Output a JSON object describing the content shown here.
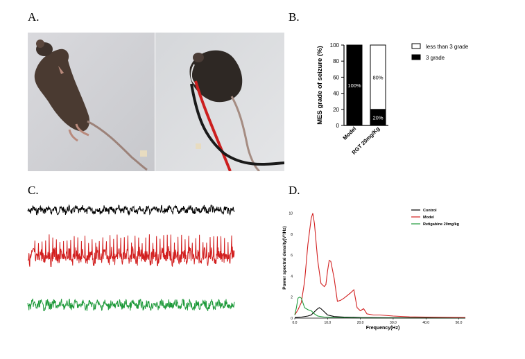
{
  "panels": {
    "a": "A.",
    "b": "B.",
    "c": "C.",
    "d": "D."
  },
  "colors": {
    "control": "#000000",
    "model": "#d21f1f",
    "retigabine": "#1e9a3a"
  },
  "chart_data": [
    {
      "panel": "B",
      "type": "bar",
      "stacked": true,
      "categories": [
        "Model",
        "RGT 20mg/Kg"
      ],
      "series": [
        {
          "name": "3 grade",
          "values": [
            100,
            20
          ],
          "labels": [
            "100%",
            "20%"
          ]
        },
        {
          "name": "less than 3 grade",
          "values": [
            0,
            80
          ],
          "labels": [
            "",
            "80%"
          ]
        }
      ],
      "ylabel": "MES grade of seizure (%)",
      "ylim": [
        0,
        100
      ],
      "yticks": [
        "0",
        "20",
        "40",
        "60",
        "80",
        "100"
      ],
      "legend": "right"
    },
    {
      "panel": "C",
      "type": "line",
      "series": [
        {
          "name": "Control",
          "color": "#000000",
          "amplitude": 0.12,
          "spikes": false
        },
        {
          "name": "Model",
          "color": "#d21f1f",
          "amplitude": 0.25,
          "spikes": true
        },
        {
          "name": "Retigabine 20mg/kg",
          "color": "#1e9a3a",
          "amplitude": 0.15,
          "spikes": false
        }
      ]
    },
    {
      "panel": "D",
      "type": "line",
      "xlabel": "Frequency(Hz)",
      "ylabel": "Power spectral density(V²/Hz)",
      "xlim": [
        0,
        52
      ],
      "ylim": [
        0,
        10.5
      ],
      "xticks": [
        "0.0",
        "10.0",
        "20.0",
        "30.0",
        "40.0",
        "50.0"
      ],
      "yticks": [
        "0",
        "2",
        "4",
        "6",
        "8",
        "10"
      ],
      "legend": "top-right",
      "series": [
        {
          "name": "Control",
          "color": "#000000",
          "points": [
            [
              0,
              0.05
            ],
            [
              2,
              0.1
            ],
            [
              4,
              0.2
            ],
            [
              5,
              0.3
            ],
            [
              6,
              0.6
            ],
            [
              7,
              0.9
            ],
            [
              7.5,
              1.0
            ],
            [
              8,
              0.9
            ],
            [
              9,
              0.6
            ],
            [
              10,
              0.3
            ],
            [
              12,
              0.15
            ],
            [
              15,
              0.1
            ],
            [
              20,
              0.05
            ],
            [
              30,
              0.03
            ],
            [
              52,
              0.02
            ]
          ]
        },
        {
          "name": "Model",
          "color": "#d21f1f",
          "points": [
            [
              0,
              0.3
            ],
            [
              1,
              0.8
            ],
            [
              2,
              1.5
            ],
            [
              3,
              3.5
            ],
            [
              4,
              7
            ],
            [
              5,
              9.5
            ],
            [
              5.5,
              10
            ],
            [
              6,
              9
            ],
            [
              7,
              5.5
            ],
            [
              8,
              3.3
            ],
            [
              9,
              3.0
            ],
            [
              9.5,
              3.2
            ],
            [
              10,
              4.5
            ],
            [
              10.5,
              5.5
            ],
            [
              11,
              5.4
            ],
            [
              12,
              3.8
            ],
            [
              13,
              1.6
            ],
            [
              14,
              1.7
            ],
            [
              15,
              1.9
            ],
            [
              17,
              2.4
            ],
            [
              18,
              2.7
            ],
            [
              19,
              1.0
            ],
            [
              20,
              0.7
            ],
            [
              21,
              0.9
            ],
            [
              22,
              0.4
            ],
            [
              24,
              0.3
            ],
            [
              26,
              0.3
            ],
            [
              30,
              0.2
            ],
            [
              35,
              0.12
            ],
            [
              40,
              0.1
            ],
            [
              52,
              0.05
            ]
          ]
        },
        {
          "name": "Retigabine 20mg/kg",
          "color": "#1e9a3a",
          "points": [
            [
              0,
              0.3
            ],
            [
              0.5,
              1.0
            ],
            [
              1,
              1.9
            ],
            [
              1.5,
              2.0
            ],
            [
              2,
              1.9
            ],
            [
              3,
              1.0
            ],
            [
              4,
              0.8
            ],
            [
              5,
              0.7
            ],
            [
              6,
              0.4
            ],
            [
              7,
              0.2
            ],
            [
              9,
              0.1
            ],
            [
              12,
              0.05
            ],
            [
              20,
              0.02
            ],
            [
              52,
              0.0
            ]
          ]
        }
      ]
    }
  ]
}
